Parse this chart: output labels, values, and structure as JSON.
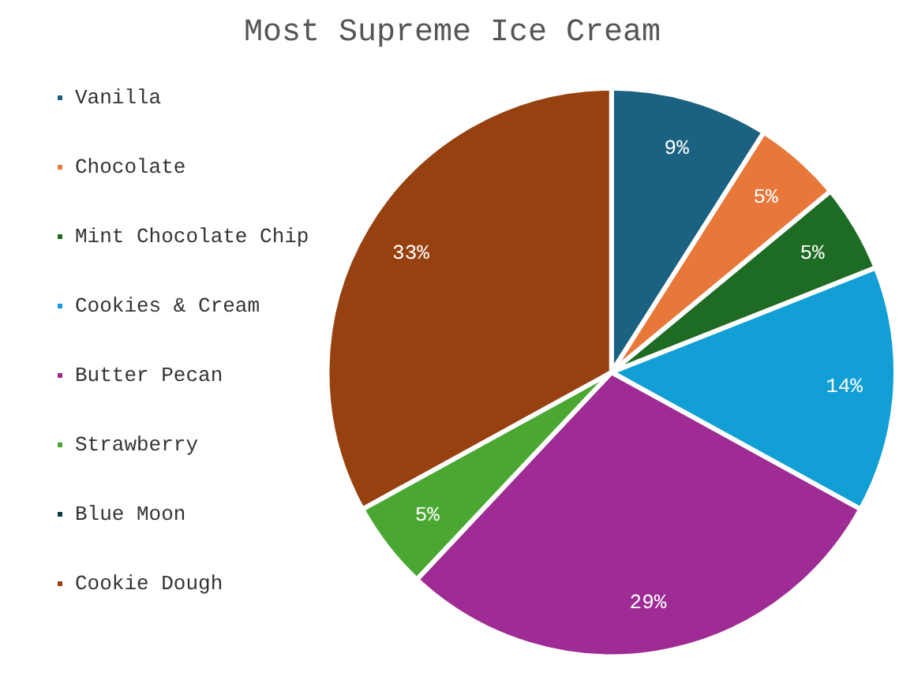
{
  "chart_data": {
    "type": "pie",
    "title": "Most Supreme Ice Cream",
    "categories": [
      "Vanilla",
      "Chocolate",
      "Mint Chocolate Chip",
      "Cookies & Cream",
      "Butter Pecan",
      "Strawberry",
      "Blue Moon",
      "Cookie Dough"
    ],
    "values": [
      9,
      5,
      5,
      14,
      29,
      5,
      0,
      33
    ],
    "colors": [
      "#1b6182",
      "#e8773a",
      "#1e6b24",
      "#119fd6",
      "#9f2b94",
      "#4aa832",
      "#0d3b4a",
      "#96410f"
    ],
    "value_labels": [
      "9%",
      "5%",
      "5%",
      "14%",
      "29%",
      "5%",
      null,
      "33%"
    ],
    "legend": "left"
  }
}
